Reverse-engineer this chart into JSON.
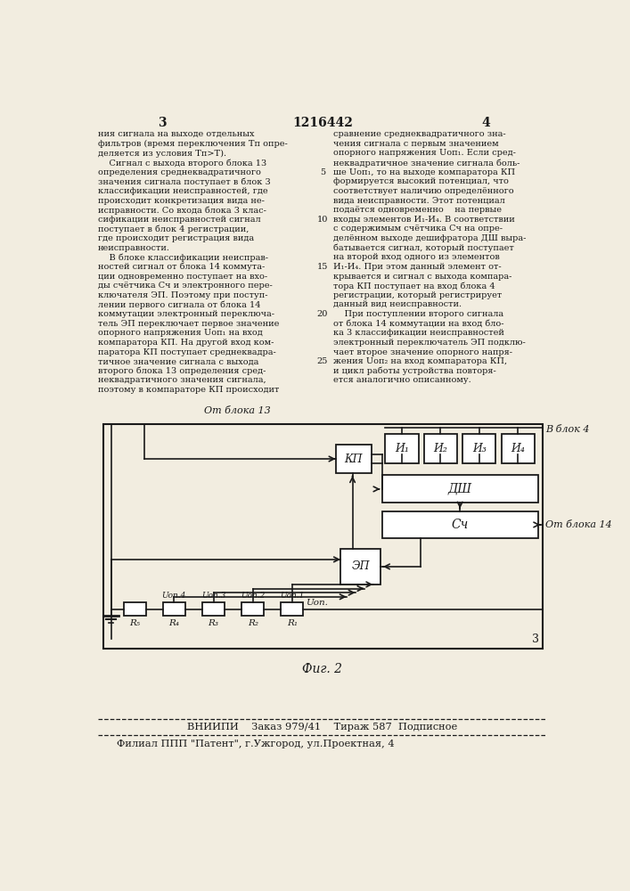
{
  "page_number_left": "3",
  "page_number_center": "1216442",
  "page_number_right": "4",
  "left_column_text": [
    "ния сигнала на выходе отдельных",
    "фильтров (время переключения Tп опре-",
    "деляется из условия Tп>T).",
    "    Сигнал с выхода второго блока 13",
    "определения среднеквадратичного",
    "значения сигнала поступает в блок 3",
    "классификации неисправностей, где",
    "происходит конкретизация вида не-",
    "исправности. Со входа блока 3 клас-",
    "сификации неисправностей сигнал",
    "поступает в блок 4 регистрации,",
    "где происходит регистрация вида",
    "неисправности.",
    "    В блоке классификации неисправ-",
    "ностей сигнал от блока 14 коммута-",
    "ции одновременно поступает на вхо-",
    "ды счётчика Сч и электронного пере-",
    "ключателя ЭП. Поэтому при поступ-",
    "лении первого сигнала от блока 14",
    "коммутации электронный переключа-",
    "тель ЭП переключает первое значение",
    "опорного напряжения Uоп₁ на вход",
    "компаратора КП. На другой вход ком-",
    "паратора КП поступает среднеквадра-",
    "тичное значение сигнала с выхода",
    "второго блока 13 определения сред-",
    "неквадратичного значения сигнала,",
    "поэтому в компараторе КП происходит"
  ],
  "right_column_text": [
    "сравнение среднеквадратичного зна-",
    "чения сигнала с первым значением",
    "опорного напряжения Uоп₁. Если сред-",
    "неквадратичное значение сигнала боль-",
    "ше Uоп₁, то на выходе компаратора КП",
    "формируется высокий потенциал, что",
    "соответствует наличию определённого",
    "вида неисправности. Этот потенциал",
    "подаётся одновременно    на первые",
    "входы элементов И₁-И₄. В соответствии",
    "с содержимым счётчика Сч на опре-",
    "делённом выходе дешифратора ДШ выра-",
    "батывается сигнал, который поступает",
    "на второй вход одного из элементов",
    "И₁-И₄. При этом данный элемент от-",
    "крывается и сигнал с выхода компара-",
    "тора КП поступает на вход блока 4",
    "регистрации, который регистрирует",
    "данный вид неисправности.",
    "    При поступлении второго сигнала",
    "от блока 14 коммутации на вход бло-",
    "ка 3 классификации неисправностей",
    "электронный переключатель ЭП подклю-",
    "чает второе значение опорного напря-",
    "жения Uоп₂ на вход компаратора КП,",
    "и цикл работы устройства повторя-",
    "ется аналогично описанному."
  ],
  "diagram_label_top": "От блока 13",
  "diagram_label_right_top": "В блок 4",
  "diagram_label_right_bottom": "От блока 14",
  "fig_caption": "Фиг. 2",
  "footer_line1": "ВНИИПИ    Заказ 979/41    Тираж 587  Подписное",
  "footer_line2": "Филиал ППП \"Патент\", г.Ужгород, ул.Проектная, 4",
  "bg_color": "#f2ede0",
  "text_color": "#1a1a1a",
  "box_color": "#1a1a1a"
}
